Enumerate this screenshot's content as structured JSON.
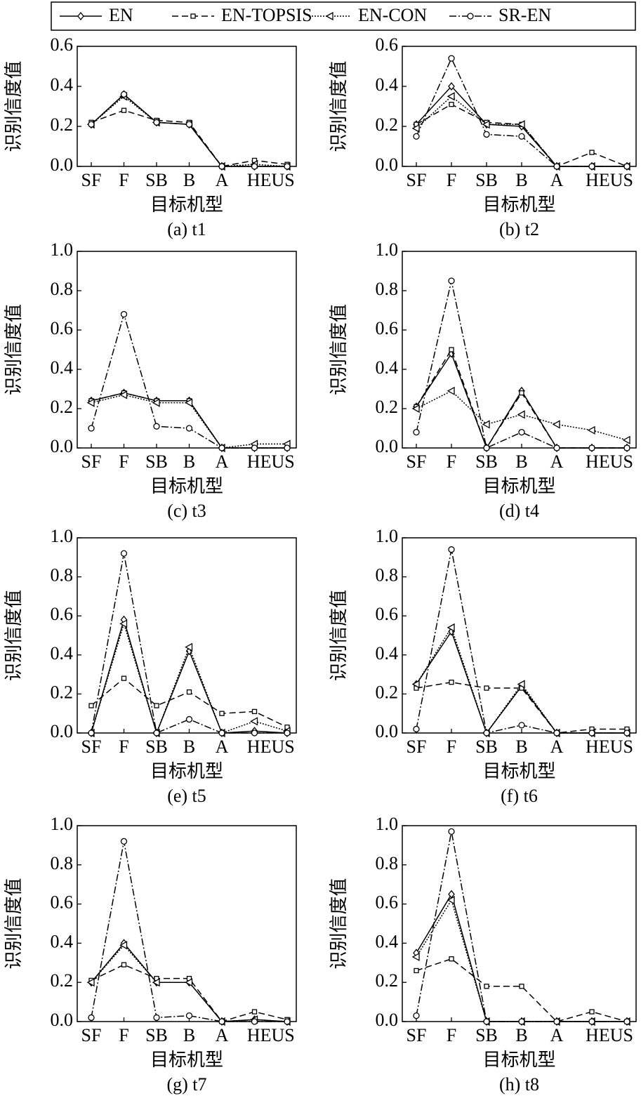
{
  "legend": [
    {
      "name": "EN",
      "color": "#000",
      "dash": "",
      "marker": "diamond"
    },
    {
      "name": "EN-TOPSIS",
      "color": "#000",
      "dash": "9,5",
      "marker": "square"
    },
    {
      "name": "EN-CON",
      "color": "#000",
      "dash": "2,2",
      "marker": "triangle-left"
    },
    {
      "name": "SR-EN",
      "color": "#000",
      "dash": "10,3,2,3",
      "marker": "circle"
    }
  ],
  "chart_data": [
    {
      "type": "line",
      "title": "(a) t1",
      "xlabel": "目标机型",
      "ylabel": "识别信度值",
      "categories": [
        "SF",
        "F",
        "SB",
        "B",
        "A",
        "HEUS",
        null
      ],
      "ylim": [
        0,
        0.6
      ],
      "yticks": [
        {
          "value": 0,
          "label": "0.0"
        },
        0.2,
        0.4,
        0.6
      ],
      "series": [
        {
          "values": [
            0.21,
            0.36,
            0.22,
            0.21,
            0,
            0,
            0
          ]
        },
        {
          "values": [
            0.22,
            0.28,
            0.23,
            0.22,
            0,
            0.03,
            0.01
          ]
        },
        {
          "values": [
            0.21,
            0.35,
            0.22,
            0.21,
            0,
            0.01,
            0
          ]
        },
        {
          "values": [
            0.21,
            0.36,
            0.22,
            0.21,
            0,
            0,
            0
          ]
        }
      ]
    },
    {
      "type": "line",
      "title": "(b) t2",
      "xlabel": "目标机型",
      "ylabel": "识别信度值",
      "categories": [
        "SF",
        "F",
        "SB",
        "B",
        "A",
        "HEUS",
        null
      ],
      "ylim": [
        0,
        0.6
      ],
      "yticks": [
        {
          "value": 0,
          "label": "0.0"
        },
        0.2,
        0.4,
        0.6
      ],
      "series": [
        {
          "values": [
            0.21,
            0.4,
            0.21,
            0.2,
            0,
            0,
            0
          ]
        },
        {
          "values": [
            0.21,
            0.31,
            0.22,
            0.21,
            0,
            0.07,
            0
          ]
        },
        {
          "values": [
            0.19,
            0.35,
            0.21,
            0.21,
            0,
            0,
            0
          ]
        },
        {
          "values": [
            0.15,
            0.54,
            0.16,
            0.15,
            0,
            0,
            0
          ]
        }
      ]
    },
    {
      "type": "line",
      "title": "(c) t3",
      "xlabel": "目标机型",
      "ylabel": "识别信度值",
      "categories": [
        "SF",
        "F",
        "SB",
        "B",
        "A",
        "HEUS",
        null
      ],
      "ylim": [
        0,
        1
      ],
      "yticks": [
        {
          "value": 0,
          "label": "0.0"
        },
        0.2,
        0.4,
        0.6,
        0.8,
        {
          "value": 1,
          "label": "1.0"
        }
      ],
      "series": [
        {
          "values": [
            0.24,
            0.28,
            0.24,
            0.24,
            0,
            0,
            0
          ]
        },
        {
          "values": [
            0.24,
            0.28,
            0.24,
            0.24,
            0,
            0,
            0
          ]
        },
        {
          "values": [
            0.23,
            0.27,
            0.23,
            0.23,
            0,
            0.02,
            0.02
          ]
        },
        {
          "values": [
            0.1,
            0.68,
            0.11,
            0.1,
            0,
            0,
            0
          ]
        }
      ]
    },
    {
      "type": "line",
      "title": "(d) t4",
      "xlabel": "目标机型",
      "ylabel": "识别信度值",
      "categories": [
        "SF",
        "F",
        "SB",
        "B",
        "A",
        "HEUS",
        null
      ],
      "ylim": [
        0,
        1
      ],
      "yticks": [
        {
          "value": 0,
          "label": "0.0"
        },
        0.2,
        0.4,
        0.6,
        0.8,
        {
          "value": 1,
          "label": "1.0"
        }
      ],
      "series": [
        {
          "values": [
            0.21,
            0.48,
            0,
            0.29,
            0,
            0,
            0
          ]
        },
        {
          "values": [
            0.21,
            0.5,
            0,
            0.28,
            0,
            0,
            0
          ]
        },
        {
          "values": [
            0.2,
            0.29,
            0.12,
            0.17,
            0.12,
            0.09,
            0.04
          ]
        },
        {
          "values": [
            0.08,
            0.85,
            0,
            0.08,
            0,
            0,
            0
          ]
        }
      ]
    },
    {
      "type": "line",
      "title": "(e) t5",
      "xlabel": "目标机型",
      "ylabel": "识别信度值",
      "categories": [
        "SF",
        "F",
        "SB",
        "B",
        "A",
        "HEUS",
        null
      ],
      "ylim": [
        0,
        1
      ],
      "yticks": [
        {
          "value": 0,
          "label": "0.0"
        },
        0.2,
        0.4,
        0.6,
        0.8,
        {
          "value": 1,
          "label": "1.0"
        }
      ],
      "series": [
        {
          "values": [
            0,
            0.58,
            0,
            0.42,
            0,
            0.01,
            0
          ]
        },
        {
          "values": [
            0.14,
            0.28,
            0.14,
            0.21,
            0.1,
            0.11,
            0.03
          ]
        },
        {
          "values": [
            0,
            0.56,
            0,
            0.44,
            0,
            0.06,
            0.01
          ]
        },
        {
          "values": [
            0,
            0.92,
            0,
            0.07,
            0,
            0,
            0
          ]
        }
      ]
    },
    {
      "type": "line",
      "title": "(f) t6",
      "xlabel": "目标机型",
      "ylabel": "识别信度值",
      "categories": [
        "SF",
        "F",
        "SB",
        "B",
        "A",
        "HEUS",
        null
      ],
      "ylim": [
        0,
        1
      ],
      "yticks": [
        {
          "value": 0,
          "label": "0.0"
        },
        0.2,
        0.4,
        0.6,
        0.8,
        {
          "value": 1,
          "label": "1.0"
        }
      ],
      "series": [
        {
          "values": [
            0.25,
            0.52,
            0,
            0.24,
            0,
            0,
            0
          ]
        },
        {
          "values": [
            0.23,
            0.26,
            0.23,
            0.23,
            0,
            0.02,
            0.02
          ]
        },
        {
          "values": [
            0.25,
            0.54,
            0,
            0.25,
            0,
            0,
            0
          ]
        },
        {
          "values": [
            0.02,
            0.94,
            0,
            0.04,
            0,
            0,
            0
          ]
        }
      ]
    },
    {
      "type": "line",
      "title": "(g) t7",
      "xlabel": "目标机型",
      "ylabel": "识别信度值",
      "categories": [
        "SF",
        "F",
        "SB",
        "B",
        "A",
        "HEUS",
        null
      ],
      "ylim": [
        0,
        1
      ],
      "yticks": [
        {
          "value": 0,
          "label": "0.0"
        },
        0.2,
        0.4,
        0.6,
        0.8,
        {
          "value": 1,
          "label": "1.0"
        }
      ],
      "series": [
        {
          "values": [
            0.2,
            0.4,
            0.2,
            0.2,
            0,
            0.01,
            0
          ]
        },
        {
          "values": [
            0.21,
            0.29,
            0.22,
            0.22,
            0,
            0.05,
            0.01
          ]
        },
        {
          "values": [
            0.2,
            0.39,
            0.2,
            0.2,
            0,
            0.01,
            0
          ]
        },
        {
          "values": [
            0.02,
            0.92,
            0.02,
            0.03,
            0,
            0,
            0
          ]
        }
      ]
    },
    {
      "type": "line",
      "title": "(h) t8",
      "xlabel": "目标机型",
      "ylabel": "识别信度值",
      "categories": [
        "SF",
        "F",
        "SB",
        "B",
        "A",
        "HEUS",
        null
      ],
      "ylim": [
        0,
        1
      ],
      "yticks": [
        {
          "value": 0,
          "label": "0.0"
        },
        0.2,
        0.4,
        0.6,
        0.8,
        {
          "value": 1,
          "label": "1.0"
        }
      ],
      "series": [
        {
          "values": [
            0.35,
            0.65,
            0,
            0,
            0,
            0,
            0
          ]
        },
        {
          "values": [
            0.26,
            0.32,
            0.18,
            0.18,
            0,
            0.05,
            0
          ]
        },
        {
          "values": [
            0.33,
            0.62,
            0,
            0,
            0,
            0,
            0
          ]
        },
        {
          "values": [
            0.03,
            0.97,
            0,
            0,
            0,
            0,
            0
          ]
        }
      ]
    }
  ]
}
